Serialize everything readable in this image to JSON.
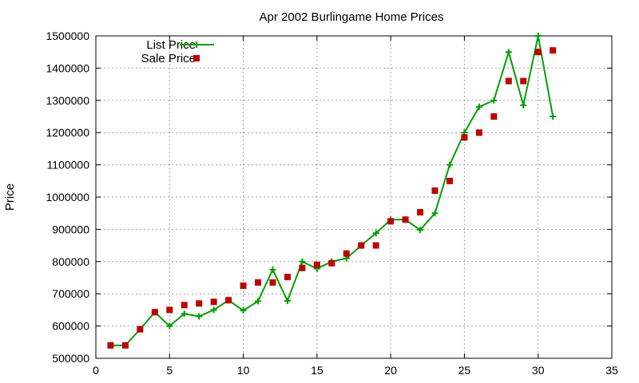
{
  "chart_data": {
    "type": "line",
    "title": "Apr 2002 Burlingame Home Prices",
    "xlabel": "",
    "ylabel": "Price",
    "xlim": [
      0,
      35
    ],
    "ylim": [
      500000,
      1500000
    ],
    "xticks": [
      "0",
      "5",
      "10",
      "15",
      "20",
      "25",
      "30",
      "35"
    ],
    "yticks": [
      "500000",
      "600000",
      "700000",
      "800000",
      "900000",
      "1000000",
      "1100000",
      "1200000",
      "1300000",
      "1400000",
      "1500000"
    ],
    "grid": true,
    "legend": "top-left",
    "series": [
      {
        "name": "List Price",
        "style": "line-with-plus-markers",
        "color": "#00a000",
        "x": [
          1,
          2,
          3,
          4,
          5,
          6,
          7,
          8,
          9,
          10,
          11,
          12,
          13,
          14,
          15,
          16,
          17,
          18,
          19,
          20,
          21,
          22,
          23,
          24,
          25,
          26,
          27,
          28,
          29,
          30,
          31
        ],
        "y": [
          540000,
          540000,
          590000,
          643000,
          600000,
          638000,
          630000,
          650000,
          680000,
          648000,
          677000,
          775000,
          678000,
          800000,
          778000,
          800000,
          810000,
          850000,
          888000,
          930000,
          930000,
          898000,
          950000,
          1100000,
          1200000,
          1280000,
          1300000,
          1450000,
          1285000,
          1500000,
          1250000
        ]
      },
      {
        "name": "Sale Price",
        "style": "square-markers",
        "color": "#c00000",
        "x": [
          1,
          2,
          3,
          4,
          5,
          6,
          7,
          8,
          9,
          10,
          11,
          12,
          13,
          14,
          15,
          16,
          17,
          18,
          19,
          20,
          21,
          22,
          23,
          24,
          25,
          26,
          27,
          28,
          29,
          30,
          31
        ],
        "y": [
          540000,
          540000,
          590000,
          643000,
          650000,
          665000,
          670000,
          675000,
          680000,
          725000,
          735000,
          735000,
          752000,
          780000,
          790000,
          795000,
          825000,
          850000,
          850000,
          925000,
          930000,
          953000,
          1020000,
          1050000,
          1185000,
          1200000,
          1250000,
          1360000,
          1360000,
          1450000,
          1455000
        ]
      }
    ]
  }
}
